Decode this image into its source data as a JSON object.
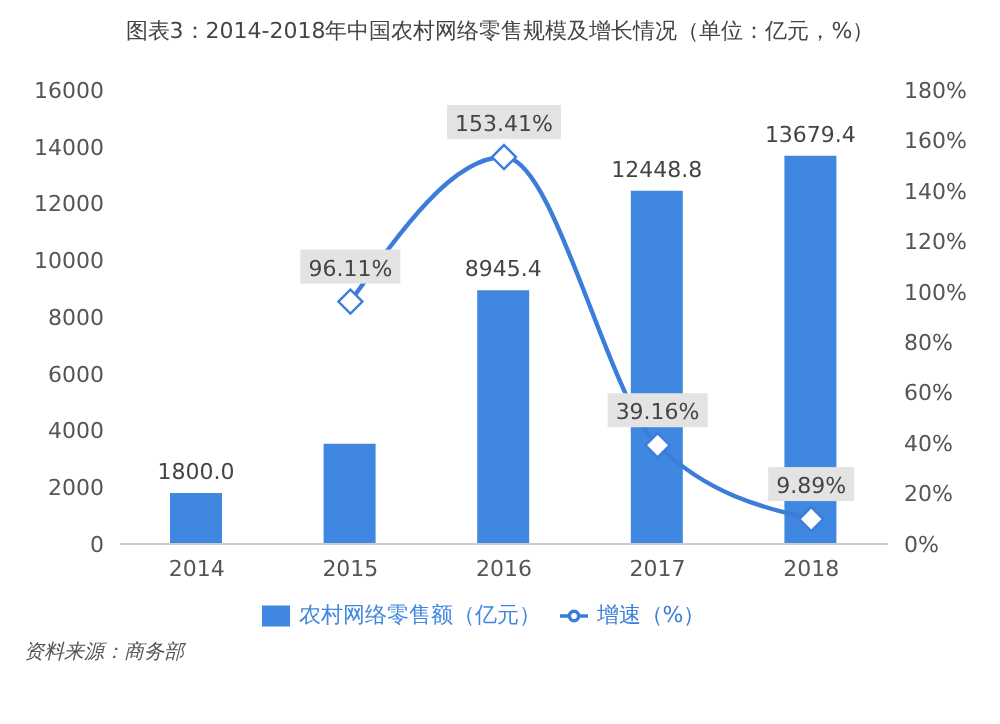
{
  "chart_data": {
    "type": "bar",
    "title": "图表3：2014-2018年中国农村网络零售规模及增长情况（单位：亿元，%）",
    "categories": [
      "2014",
      "2015",
      "2016",
      "2017",
      "2018"
    ],
    "series": [
      {
        "name": "农村网络零售额（亿元）",
        "color": "#3f87e0",
        "values": [
          1800.0,
          3530,
          8945.4,
          12448.8,
          13679.4
        ],
        "value_labels": [
          "1800.0",
          null,
          "8945.4",
          "12448.8",
          "13679.4"
        ]
      },
      {
        "name": "增速（%）",
        "type": "line",
        "axis": "y2",
        "color": "#3b7dd8",
        "values": [
          null,
          96.11,
          153.41,
          39.16,
          9.89
        ],
        "value_labels": [
          null,
          "96.11%",
          "153.41%",
          "39.16%",
          "9.89%"
        ]
      }
    ],
    "ylim": [
      0,
      16000
    ],
    "yticks": [
      0,
      2000,
      4000,
      6000,
      8000,
      10000,
      12000,
      14000,
      16000
    ],
    "y2lim": [
      0,
      180
    ],
    "y2ticks": [
      {
        "value": 0,
        "label": "0%"
      },
      {
        "value": 20,
        "label": "20%"
      },
      {
        "value": 40,
        "label": "40%"
      },
      {
        "value": 60,
        "label": "60%"
      },
      {
        "value": 80,
        "label": "80%"
      },
      {
        "value": 100,
        "label": "100%"
      },
      {
        "value": 120,
        "label": "120%"
      },
      {
        "value": 140,
        "label": "140%"
      },
      {
        "value": 160,
        "label": "160%"
      },
      {
        "value": 180,
        "label": "180%"
      }
    ],
    "marker": "diamond",
    "legend": "bottom",
    "annotations": [
      "资料来源：商务部"
    ]
  }
}
